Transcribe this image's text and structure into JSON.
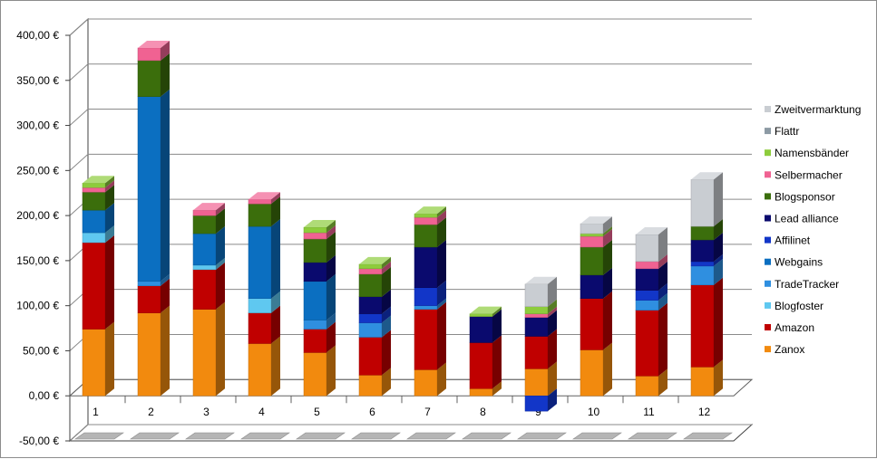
{
  "chart_data": {
    "type": "bar",
    "stacked": true,
    "style": "3d",
    "categories": [
      "1",
      "2",
      "3",
      "4",
      "5",
      "6",
      "7",
      "8",
      "9",
      "10",
      "11",
      "12"
    ],
    "y_ticks": [
      "400,00 €",
      "350,00 €",
      "300,00 €",
      "250,00 €",
      "200,00 €",
      "150,00 €",
      "100,00 €",
      "50,00 €",
      "0,00 €",
      "-50,00 €"
    ],
    "ylim": [
      -50,
      400
    ],
    "grid": true,
    "legend_position": "right",
    "series": [
      {
        "name": "Zanox",
        "color": "#f28a0e",
        "values": [
          74,
          92,
          96,
          58,
          48,
          23,
          29,
          8,
          30,
          51,
          22,
          32
        ]
      },
      {
        "name": "Amazon",
        "color": "#c00000",
        "values": [
          96,
          30,
          44,
          34,
          26,
          42,
          67,
          51,
          36,
          57,
          73,
          91
        ]
      },
      {
        "name": "Blogfoster",
        "color": "#5fc8f0",
        "values": [
          11,
          0,
          5,
          16,
          0,
          0,
          0,
          0,
          0,
          0,
          0,
          0
        ]
      },
      {
        "name": "TradeTracker",
        "color": "#2f8fe0",
        "values": [
          0,
          5,
          0,
          0,
          10,
          16,
          4,
          0,
          0,
          0,
          11,
          21
        ]
      },
      {
        "name": "Webgains",
        "color": "#0b6fc1",
        "values": [
          25,
          205,
          35,
          80,
          43,
          0,
          0,
          0,
          0,
          0,
          0,
          0
        ]
      },
      {
        "name": "Affilinet",
        "color": "#1236c8",
        "values": [
          0,
          0,
          0,
          0,
          0,
          10,
          20,
          0,
          -17,
          0,
          11,
          5
        ]
      },
      {
        "name": "Lead alliance",
        "color": "#0a0a6e",
        "values": [
          0,
          0,
          0,
          0,
          21,
          19,
          45,
          29,
          21,
          26,
          24,
          24
        ]
      },
      {
        "name": "Blogsponsor",
        "color": "#3b6e0c",
        "values": [
          20,
          40,
          20,
          25,
          26,
          25,
          25,
          0,
          0,
          31,
          0,
          15
        ]
      },
      {
        "name": "Selbermacher",
        "color": "#f06292",
        "values": [
          5,
          14,
          6,
          5,
          7,
          6,
          8,
          0,
          4,
          12,
          8,
          0
        ]
      },
      {
        "name": "Namensbänder",
        "color": "#8dcc3c",
        "values": [
          5,
          0,
          0,
          0,
          6,
          5,
          4,
          3,
          8,
          3,
          0,
          0
        ]
      },
      {
        "name": "Flattr",
        "color": "#8c9aa4",
        "values": [
          0,
          0,
          0,
          0,
          0,
          0,
          0,
          0,
          0,
          0,
          0,
          0
        ]
      },
      {
        "name": "Zweitvermarktung",
        "color": "#c9cdd2",
        "values": [
          0,
          0,
          0,
          0,
          0,
          0,
          0,
          0,
          25,
          11,
          30,
          52
        ]
      }
    ]
  }
}
